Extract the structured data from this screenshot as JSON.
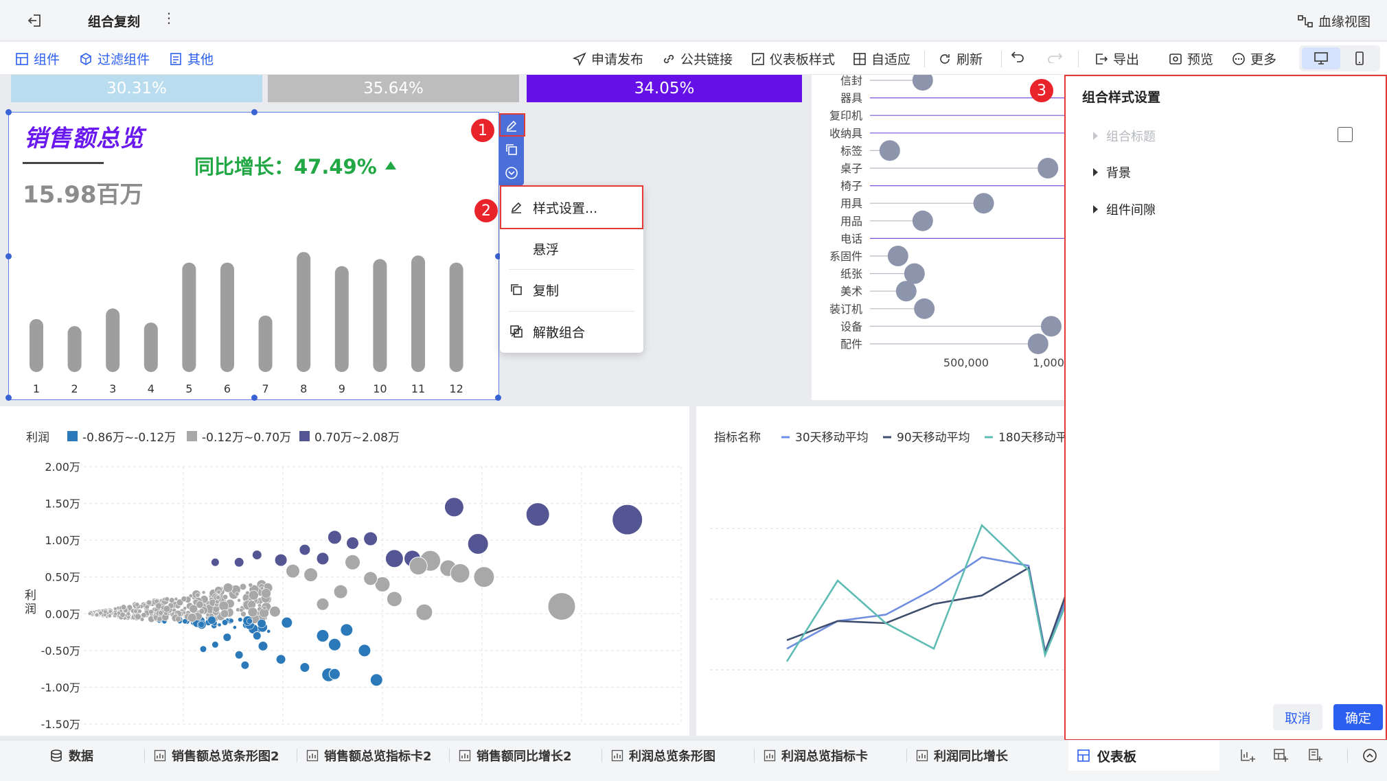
{
  "header": {
    "title": "组合复刻",
    "more": "⋮",
    "lineage_label": "血缘视图"
  },
  "toolbar": {
    "left": [
      {
        "label": "组件",
        "icon": "component-icon"
      },
      {
        "label": "过滤组件",
        "icon": "filter-icon"
      },
      {
        "label": "其他",
        "icon": "other-icon"
      }
    ],
    "right": [
      {
        "label": "申请发布",
        "icon": "send-icon"
      },
      {
        "label": "公共链接",
        "icon": "link-icon"
      },
      {
        "label": "仪表板样式",
        "icon": "style-icon"
      },
      {
        "label": "自适应",
        "icon": "adaptive-icon"
      },
      {
        "label": "刷新",
        "icon": "refresh-icon"
      },
      {
        "label": "导出",
        "icon": "export-icon"
      },
      {
        "label": "预览",
        "icon": "preview-icon"
      },
      {
        "label": "更多",
        "icon": "more-icon"
      }
    ]
  },
  "kpi_bars": [
    {
      "label": "30.31%",
      "color": "#b9dcee"
    },
    {
      "label": "35.64%",
      "color": "#bdbdbd"
    },
    {
      "label": "34.05%",
      "color": "#6610e8"
    }
  ],
  "sales": {
    "title": "销售额总览",
    "value": "15.98百万",
    "yoy_label": "同比增长：47.49%",
    "chart_data": {
      "type": "bar",
      "categories": [
        "1",
        "2",
        "3",
        "4",
        "5",
        "6",
        "7",
        "8",
        "9",
        "10",
        "11",
        "12"
      ],
      "values": [
        30,
        26,
        36,
        28,
        62,
        62,
        32,
        68,
        60,
        64,
        66,
        62
      ],
      "ylim": [
        0,
        70
      ]
    }
  },
  "context_menu": {
    "items": [
      {
        "label": "样式设置...",
        "icon": "edit-icon"
      },
      {
        "label": "悬浮",
        "icon": ""
      },
      {
        "label": "复制",
        "icon": "copy-icon"
      },
      {
        "label": "解散组合",
        "icon": "ungroup-icon"
      }
    ]
  },
  "badges": [
    "1",
    "2",
    "3"
  ],
  "dot_chart": {
    "chart_data": {
      "type": "scatter",
      "categories": [
        "信封",
        "器具",
        "复印机",
        "收纳具",
        "标签",
        "桌子",
        "椅子",
        "用具",
        "用品",
        "电话",
        "系固件",
        "纸张",
        "美术",
        "装订机",
        "设备",
        "配件"
      ],
      "values": [
        320000,
        null,
        null,
        null,
        120000,
        1080000,
        null,
        690000,
        320000,
        null,
        170000,
        270000,
        220000,
        330000,
        1100000,
        1020000
      ],
      "xlabels": [
        "500,000",
        "1,000"
      ]
    }
  },
  "scatter": {
    "title": "利润",
    "ylabel": "利润",
    "legend": [
      {
        "label": "-0.86万~-0.12万",
        "color": "#2b79b8"
      },
      {
        "label": "-0.12万~0.70万",
        "color": "#a8a8a8"
      },
      {
        "label": "0.70万~2.08万",
        "color": "#545593"
      }
    ],
    "chart_data": {
      "type": "scatter",
      "yticks": [
        "2.00万",
        "1.50万",
        "1.00万",
        "0.50万",
        "0.00万",
        "-0.50万",
        "-1.00万",
        "-1.50万"
      ],
      "ylim": [
        -1.5,
        2.0
      ],
      "points": [
        {
          "x": 0.62,
          "y": 1.45,
          "r": 14,
          "g": 2
        },
        {
          "x": 0.76,
          "y": 1.35,
          "r": 17,
          "g": 2
        },
        {
          "x": 0.91,
          "y": 1.28,
          "r": 22,
          "g": 2
        },
        {
          "x": 0.66,
          "y": 0.95,
          "r": 15,
          "g": 2
        },
        {
          "x": 0.42,
          "y": 1.04,
          "r": 10,
          "g": 2
        },
        {
          "x": 0.48,
          "y": 1.02,
          "r": 10,
          "g": 2
        },
        {
          "x": 0.45,
          "y": 0.96,
          "r": 9,
          "g": 2
        },
        {
          "x": 0.37,
          "y": 0.87,
          "r": 8,
          "g": 2
        },
        {
          "x": 0.4,
          "y": 0.75,
          "r": 9,
          "g": 2
        },
        {
          "x": 0.52,
          "y": 0.75,
          "r": 13,
          "g": 2
        },
        {
          "x": 0.55,
          "y": 0.75,
          "r": 12,
          "g": 2
        },
        {
          "x": 0.33,
          "y": 0.73,
          "r": 9,
          "g": 2
        },
        {
          "x": 0.29,
          "y": 0.8,
          "r": 7,
          "g": 2
        },
        {
          "x": 0.26,
          "y": 0.7,
          "r": 7,
          "g": 2
        },
        {
          "x": 0.22,
          "y": 0.7,
          "r": 6,
          "g": 2
        },
        {
          "x": 0.8,
          "y": 0.1,
          "r": 20,
          "g": 1
        },
        {
          "x": 0.58,
          "y": 0.72,
          "r": 15,
          "g": 1
        },
        {
          "x": 0.61,
          "y": 0.62,
          "r": 12,
          "g": 1
        },
        {
          "x": 0.67,
          "y": 0.5,
          "r": 15,
          "g": 1
        },
        {
          "x": 0.63,
          "y": 0.55,
          "r": 14,
          "g": 1
        },
        {
          "x": 0.56,
          "y": 0.65,
          "r": 13,
          "g": 1
        },
        {
          "x": 0.5,
          "y": 0.4,
          "r": 11,
          "g": 1
        },
        {
          "x": 0.52,
          "y": 0.2,
          "r": 11,
          "g": 1
        },
        {
          "x": 0.57,
          "y": 0.02,
          "r": 12,
          "g": 1
        },
        {
          "x": 0.48,
          "y": 0.48,
          "r": 10,
          "g": 1
        },
        {
          "x": 0.45,
          "y": 0.7,
          "r": 11,
          "g": 1
        },
        {
          "x": 0.43,
          "y": 0.3,
          "r": 10,
          "g": 1
        },
        {
          "x": 0.4,
          "y": 0.13,
          "r": 9,
          "g": 1
        },
        {
          "x": 0.38,
          "y": 0.53,
          "r": 10,
          "g": 1
        },
        {
          "x": 0.35,
          "y": 0.58,
          "r": 10,
          "g": 1
        },
        {
          "x": 0.32,
          "y": 0.03,
          "r": 8,
          "g": 1
        },
        {
          "x": 0.34,
          "y": -0.12,
          "r": 8,
          "g": 0
        },
        {
          "x": 0.4,
          "y": -0.3,
          "r": 9,
          "g": 0
        },
        {
          "x": 0.42,
          "y": -0.42,
          "r": 9,
          "g": 0
        },
        {
          "x": 0.44,
          "y": -0.22,
          "r": 9,
          "g": 0
        },
        {
          "x": 0.47,
          "y": -0.5,
          "r": 9,
          "g": 0
        },
        {
          "x": 0.49,
          "y": -0.9,
          "r": 9,
          "g": 0
        },
        {
          "x": 0.41,
          "y": -0.83,
          "r": 10,
          "g": 0
        },
        {
          "x": 0.42,
          "y": -0.82,
          "r": 8,
          "g": 0
        },
        {
          "x": 0.37,
          "y": -0.73,
          "r": 7,
          "g": 0
        },
        {
          "x": 0.33,
          "y": -0.62,
          "r": 7,
          "g": 0
        },
        {
          "x": 0.3,
          "y": -0.44,
          "r": 7,
          "g": 0
        },
        {
          "x": 0.29,
          "y": -0.3,
          "r": 6,
          "g": 0
        },
        {
          "x": 0.26,
          "y": -0.56,
          "r": 6,
          "g": 0
        },
        {
          "x": 0.27,
          "y": -0.7,
          "r": 6,
          "g": 0
        },
        {
          "x": 0.24,
          "y": -0.32,
          "r": 6,
          "g": 0
        },
        {
          "x": 0.22,
          "y": -0.42,
          "r": 5,
          "g": 0
        },
        {
          "x": 0.2,
          "y": -0.48,
          "r": 5,
          "g": 0
        }
      ]
    }
  },
  "line_chart": {
    "title": "指标名称",
    "legend": [
      {
        "label": "30天移动平均",
        "color": "#6f8ee0"
      },
      {
        "label": "90天移动平均",
        "color": "#3e4e6e"
      },
      {
        "label": "180天移动平",
        "color": "#5fbcb4"
      }
    ],
    "chart_data": {
      "type": "line",
      "series": [
        {
          "values": [
            0.28,
            0.41,
            0.44,
            0.56,
            0.71,
            0.67,
            0.27,
            0.52
          ]
        },
        {
          "values": [
            0.32,
            0.41,
            0.4,
            0.49,
            0.53,
            0.66,
            0.26,
            0.55
          ]
        },
        {
          "values": [
            0.22,
            0.6,
            0.4,
            0.28,
            0.86,
            0.65,
            0.25,
            0.5
          ]
        }
      ]
    }
  },
  "settings_panel": {
    "title": "组合样式设置",
    "items": [
      {
        "label": "组合标题",
        "disabled": true
      },
      {
        "label": "背景",
        "disabled": false
      },
      {
        "label": "组件间隙",
        "disabled": false
      }
    ],
    "cancel": "取消",
    "confirm": "确定"
  },
  "bottom_tabs": {
    "data_label": "数据",
    "tabs": [
      "销售额总览条形图2",
      "销售额总览指标卡2",
      "销售额同比增长2",
      "利润总览条形图",
      "利润总览指标卡",
      "利润同比增长"
    ],
    "dashboard_label": "仪表板"
  }
}
